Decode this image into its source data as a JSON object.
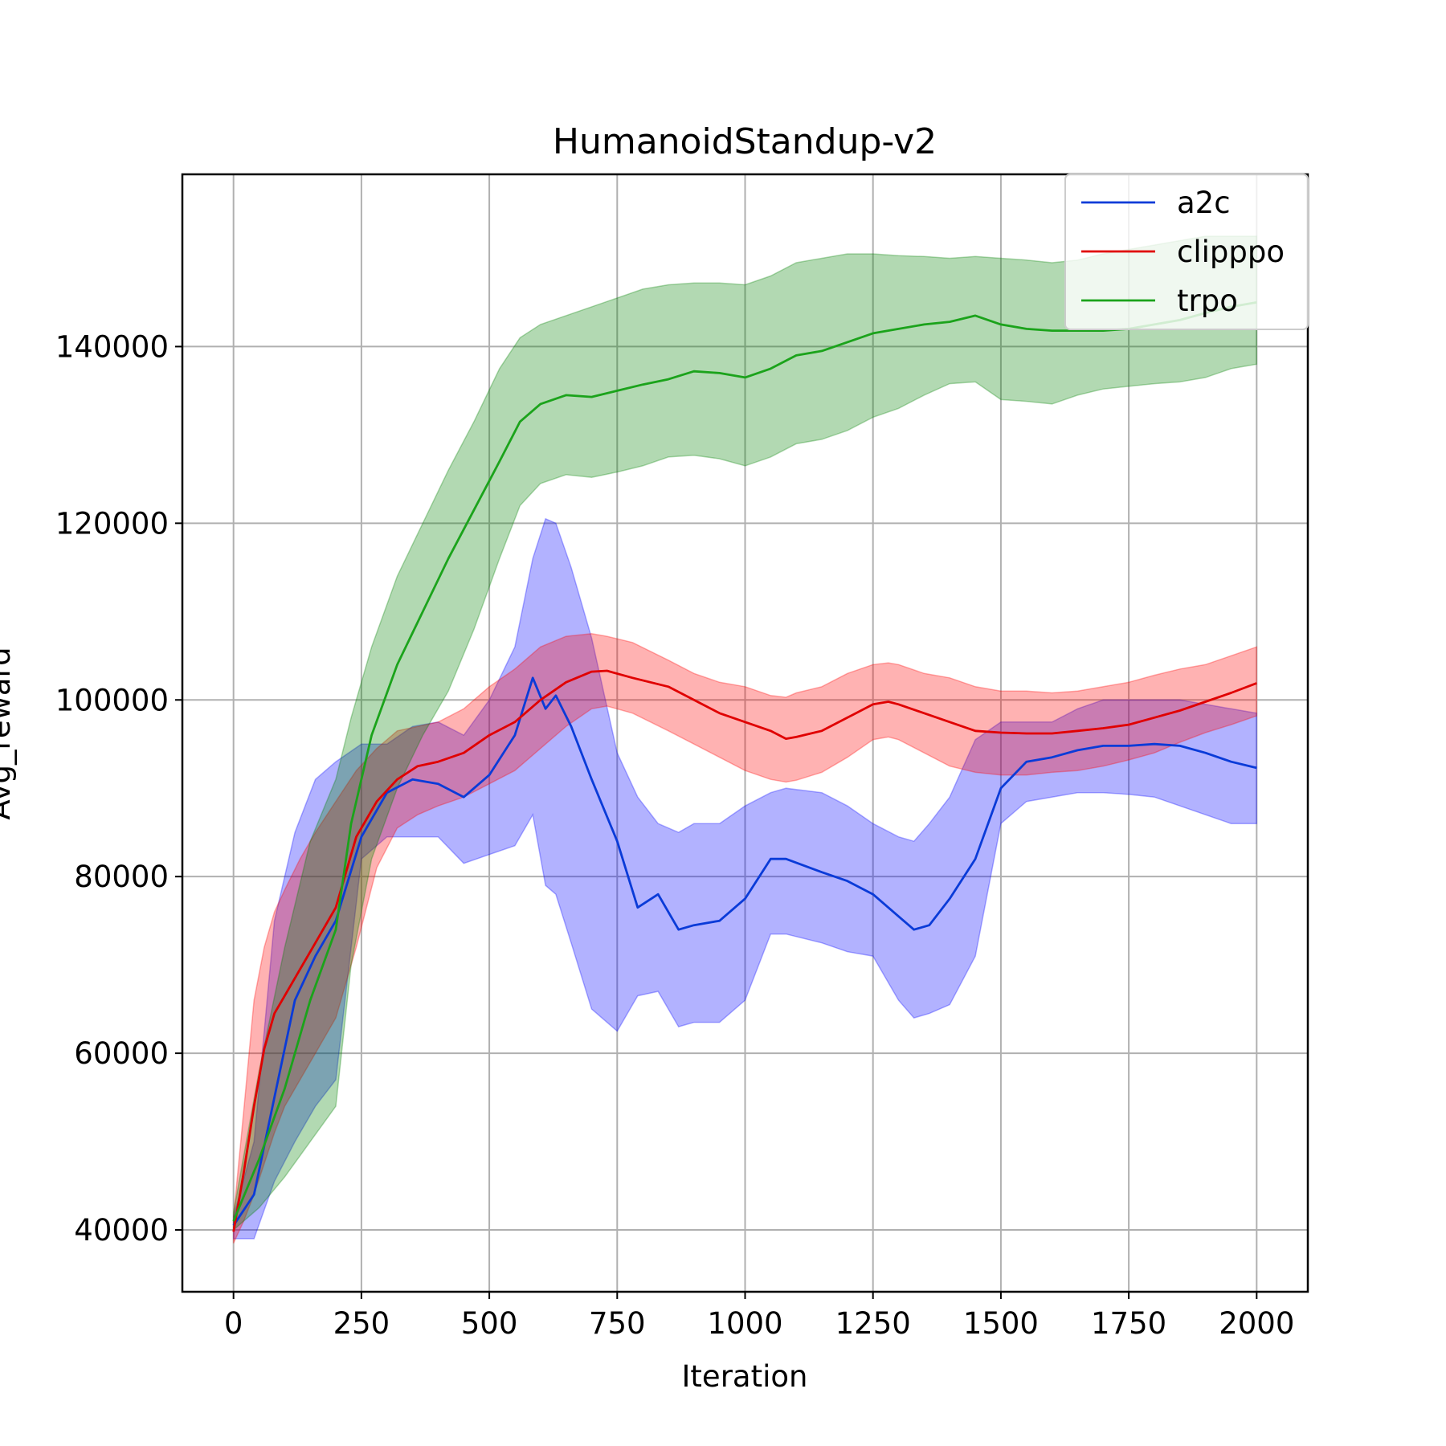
{
  "chart_data": {
    "type": "line",
    "title": "HumanoidStandup-v2",
    "xlabel": "Iteration",
    "ylabel": "Avg_reward",
    "xlim": [
      -100,
      2100
    ],
    "ylim": [
      33000,
      159500
    ],
    "xticks": [
      0,
      250,
      500,
      750,
      1000,
      1250,
      1500,
      1750,
      2000
    ],
    "yticks": [
      40000,
      60000,
      80000,
      100000,
      120000,
      140000
    ],
    "grid": true,
    "legend_position": "top-right",
    "series": [
      {
        "name": "a2c",
        "color": "#0a3bd8",
        "band_color": "#0000ff",
        "x": [
          0,
          40,
          80,
          120,
          160,
          200,
          250,
          300,
          350,
          400,
          450,
          500,
          550,
          585,
          610,
          630,
          660,
          700,
          750,
          790,
          830,
          870,
          900,
          950,
          1000,
          1050,
          1080,
          1150,
          1200,
          1250,
          1300,
          1330,
          1360,
          1400,
          1450,
          1500,
          1550,
          1600,
          1650,
          1700,
          1750,
          1800,
          1850,
          1900,
          1950,
          2000
        ],
        "y": [
          40500,
          44000,
          55000,
          66000,
          71000,
          75000,
          84500,
          89500,
          91000,
          90500,
          89000,
          91500,
          96000,
          102500,
          99000,
          100500,
          97000,
          91000,
          84000,
          76500,
          78000,
          74000,
          74500,
          75000,
          77500,
          82000,
          82000,
          80500,
          79500,
          78000,
          75500,
          74000,
          74500,
          77500,
          82000,
          90000,
          93000,
          93500,
          94300,
          94800,
          94800,
          95000,
          94800,
          94000,
          93000,
          92300
        ],
        "upper": [
          41500,
          50000,
          75000,
          85000,
          91000,
          93000,
          95000,
          95000,
          97000,
          97500,
          96000,
          100000,
          106000,
          116000,
          120500,
          120000,
          115000,
          107000,
          94000,
          89000,
          86000,
          85000,
          86000,
          86000,
          88000,
          89500,
          90000,
          89500,
          88000,
          86000,
          84500,
          84000,
          86000,
          89000,
          95500,
          97500,
          97500,
          97500,
          99000,
          100000,
          100000,
          100000,
          100000,
          99500,
          99000,
          98500
        ],
        "lower": [
          39000,
          39000,
          45500,
          50000,
          54000,
          57000,
          82000,
          84500,
          84500,
          84500,
          81500,
          82500,
          83500,
          87000,
          79000,
          78000,
          72500,
          65000,
          62500,
          66500,
          67000,
          63000,
          63500,
          63500,
          66000,
          73500,
          73500,
          72500,
          71500,
          71000,
          66000,
          64000,
          64500,
          65500,
          71000,
          86000,
          88500,
          89000,
          89500,
          89500,
          89300,
          89000,
          88000,
          87000,
          86000,
          86000
        ]
      },
      {
        "name": "clipppo",
        "color": "#e00000",
        "band_color": "#ff0000",
        "x": [
          0,
          20,
          40,
          60,
          80,
          100,
          130,
          160,
          200,
          240,
          280,
          320,
          360,
          400,
          450,
          500,
          550,
          600,
          650,
          700,
          730,
          780,
          850,
          900,
          950,
          1000,
          1050,
          1080,
          1100,
          1150,
          1200,
          1250,
          1280,
          1300,
          1350,
          1400,
          1450,
          1500,
          1550,
          1600,
          1650,
          1700,
          1750,
          1800,
          1850,
          1900,
          1950,
          2000
        ],
        "y": [
          39800,
          46500,
          54000,
          60500,
          64500,
          66500,
          69500,
          72500,
          76500,
          84500,
          88500,
          91000,
          92500,
          93000,
          94000,
          96000,
          97500,
          100000,
          102000,
          103200,
          103300,
          102500,
          101500,
          100000,
          98500,
          97500,
          96500,
          95600,
          95800,
          96500,
          98000,
          99500,
          99800,
          99500,
          98500,
          97500,
          96500,
          96300,
          96200,
          96200,
          96500,
          96800,
          97200,
          98000,
          98800,
          99800,
          100800,
          101900
        ],
        "upper": [
          41500,
          53500,
          66000,
          72000,
          76000,
          78500,
          82000,
          85000,
          88500,
          92000,
          94500,
          96500,
          97000,
          97500,
          99000,
          101500,
          103500,
          106000,
          107200,
          107500,
          107200,
          106500,
          104500,
          103000,
          102000,
          101500,
          100500,
          100300,
          100800,
          101500,
          103000,
          104000,
          104200,
          104000,
          103000,
          102500,
          101500,
          101000,
          101000,
          100800,
          101000,
          101500,
          102000,
          102800,
          103500,
          104000,
          105000,
          106000
        ],
        "lower": [
          38500,
          41000,
          44000,
          47500,
          51000,
          54000,
          57000,
          60000,
          64000,
          72000,
          81000,
          85500,
          87000,
          88000,
          89000,
          90500,
          92000,
          94500,
          97000,
          99000,
          99300,
          98500,
          96500,
          95000,
          93500,
          92000,
          91000,
          90700,
          90900,
          91800,
          93500,
          95500,
          95800,
          95500,
          94000,
          92500,
          91800,
          91500,
          91500,
          91800,
          92000,
          92500,
          93200,
          94000,
          95200,
          96300,
          97200,
          98200
        ]
      },
      {
        "name": "trpo",
        "color": "#1ba31b",
        "band_color": "#008000",
        "x": [
          0,
          50,
          100,
          150,
          200,
          230,
          270,
          320,
          370,
          420,
          470,
          520,
          560,
          600,
          650,
          700,
          750,
          800,
          850,
          900,
          950,
          1000,
          1050,
          1100,
          1150,
          1200,
          1250,
          1300,
          1350,
          1400,
          1450,
          1500,
          1550,
          1600,
          1650,
          1700,
          1750,
          1800,
          1850,
          1900,
          1950,
          2000
        ],
        "y": [
          41000,
          48000,
          56000,
          66000,
          74000,
          86000,
          96000,
          104000,
          110000,
          116000,
          121500,
          127000,
          131500,
          133500,
          134500,
          134300,
          135000,
          135700,
          136300,
          137200,
          137000,
          136500,
          137500,
          139000,
          139500,
          140500,
          141500,
          142000,
          142500,
          142800,
          143500,
          142500,
          142000,
          141800,
          141800,
          141800,
          142000,
          142500,
          143000,
          143800,
          144500,
          145000
        ],
        "upper": [
          42000,
          58000,
          72000,
          84000,
          91000,
          98000,
          106000,
          114000,
          120000,
          126000,
          131500,
          137500,
          141000,
          142500,
          143500,
          144500,
          145500,
          146500,
          147000,
          147200,
          147200,
          147000,
          148000,
          149500,
          150000,
          150500,
          150500,
          150300,
          150200,
          150000,
          150200,
          150000,
          149800,
          149500,
          149800,
          150500,
          151000,
          151500,
          152000,
          152500,
          152500,
          152500
        ],
        "lower": [
          40000,
          42500,
          46000,
          50000,
          54000,
          70000,
          82000,
          90000,
          96000,
          101000,
          108000,
          116000,
          122000,
          124500,
          125500,
          125200,
          125800,
          126500,
          127500,
          127700,
          127300,
          126500,
          127500,
          129000,
          129500,
          130500,
          132000,
          133000,
          134500,
          135800,
          136000,
          134000,
          133800,
          133500,
          134500,
          135200,
          135500,
          135800,
          136000,
          136500,
          137500,
          138000
        ]
      }
    ]
  }
}
